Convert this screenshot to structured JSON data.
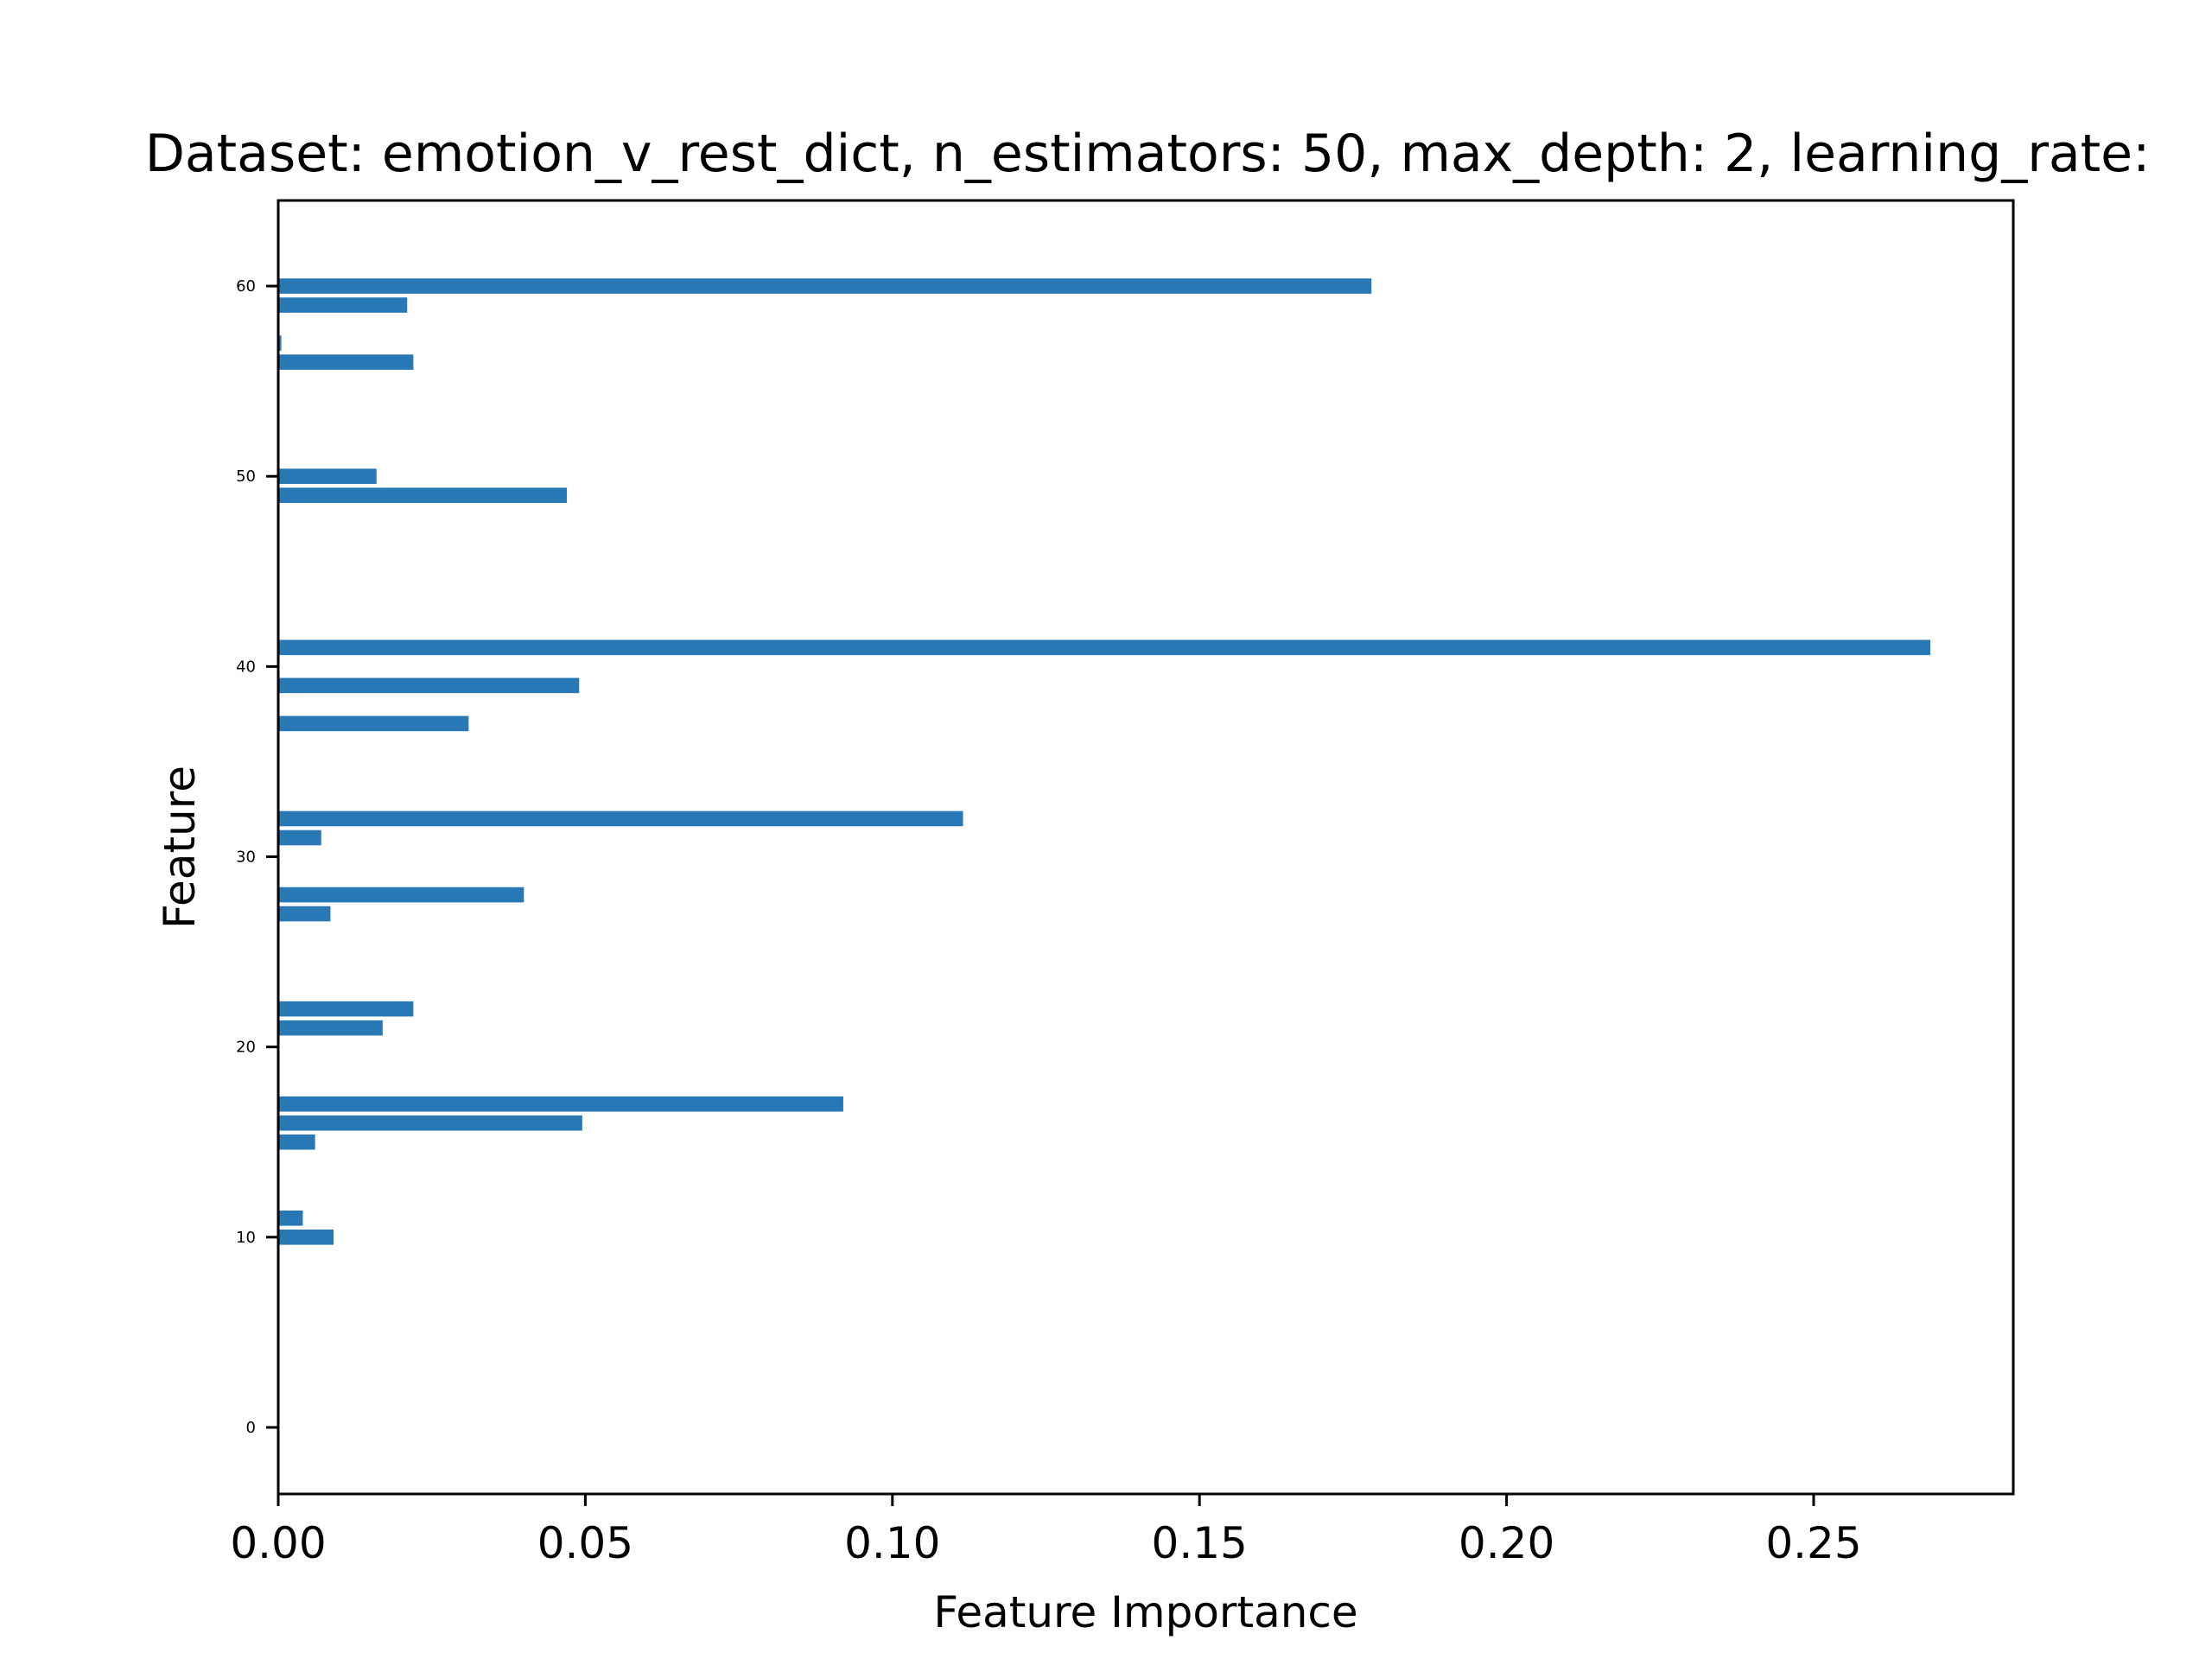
{
  "chart_data": {
    "type": "bar",
    "orientation": "horizontal",
    "title": "Dataset: emotion_v_rest_dict, n_estimators: 50, max_depth: 2, learning_rate:",
    "xlabel": "Feature Importance",
    "ylabel": "Feature",
    "xlim": [
      0,
      0.2825
    ],
    "ylim": [
      -3.5,
      64.5
    ],
    "xticks": [
      0.0,
      0.05,
      0.1,
      0.15,
      0.2,
      0.25
    ],
    "xtick_labels": [
      "0.00",
      "0.05",
      "0.10",
      "0.15",
      "0.20",
      "0.25"
    ],
    "yticks": [
      0,
      10,
      20,
      30,
      40,
      50,
      60
    ],
    "ytick_labels": [
      "0",
      "10",
      "20",
      "30",
      "40",
      "50",
      "60"
    ],
    "bar_color": "#2878b5",
    "grid": false,
    "legend": false,
    "categories": [
      10,
      11,
      15,
      16,
      17,
      21,
      22,
      27,
      28,
      31,
      32,
      37,
      39,
      41,
      49,
      50,
      56,
      57,
      59,
      60
    ],
    "values": [
      0.009,
      0.004,
      0.006,
      0.0495,
      0.092,
      0.017,
      0.022,
      0.0085,
      0.04,
      0.007,
      0.1115,
      0.031,
      0.049,
      0.269,
      0.047,
      0.016,
      0.022,
      0.0005,
      0.021,
      0.178
    ]
  }
}
